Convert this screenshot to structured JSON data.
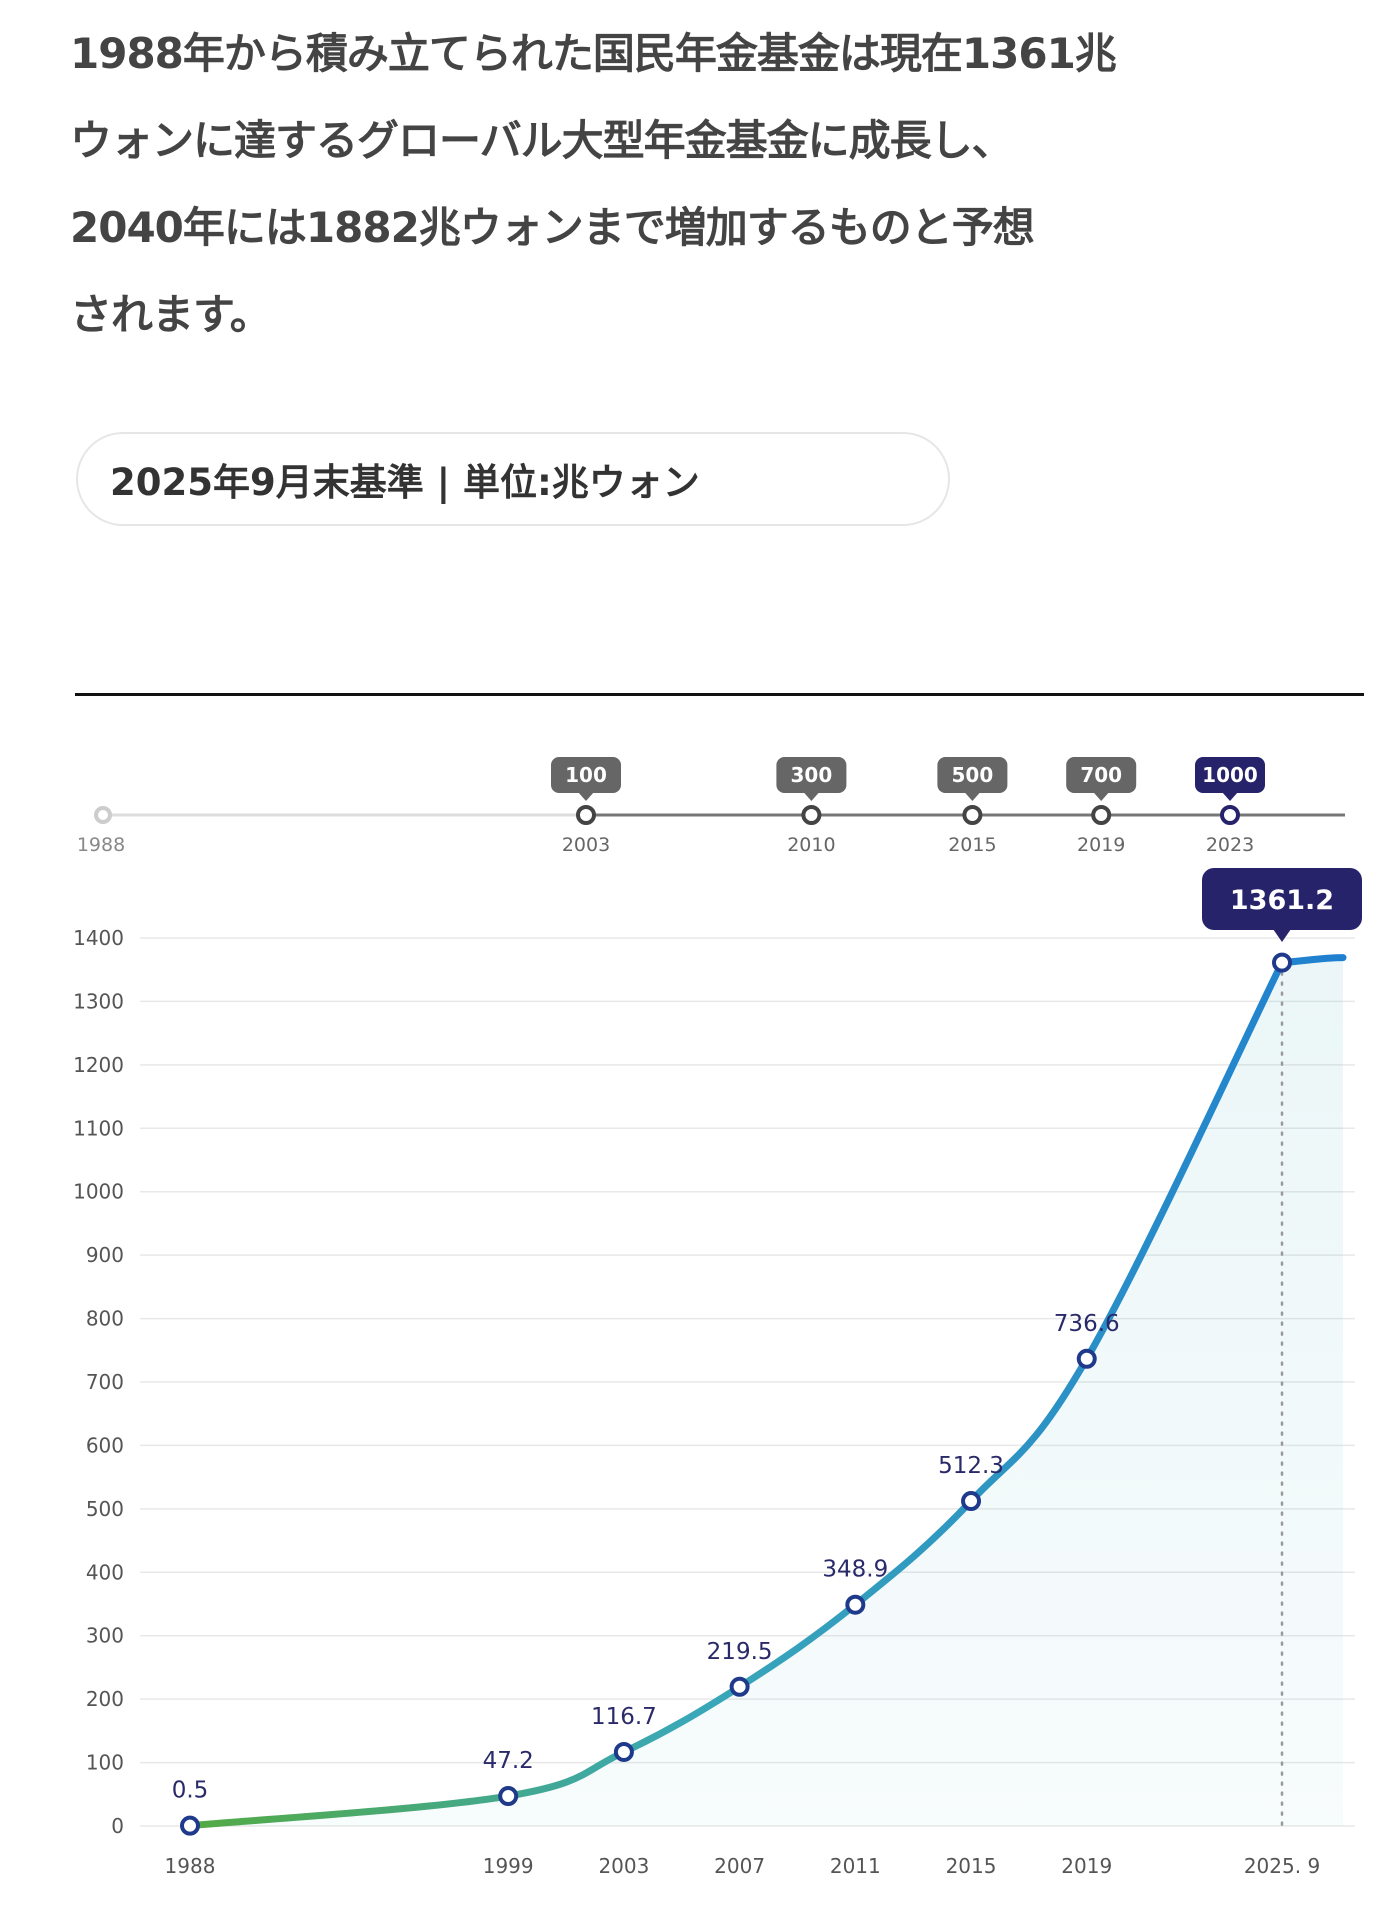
{
  "intro_lines": [
    "1988年から積み立てられた国民年金基金は現在1361兆",
    "ウォンに達するグローバル大型年金基金に成長し、",
    "2040年には1882兆ウォンまで増加するものと予想",
    "されます。"
  ],
  "basis_badge": "2025年9月末基準 | 単位:兆ウォン",
  "colors": {
    "line_start": "#55aa3a",
    "line_mid": "#3aa8b8",
    "line_end": "#1f7fd0",
    "point_stroke": "#1f3a8a",
    "label_text": "#2a2a6a",
    "callout_bg": "#27236b",
    "milestone_tag_bg": "#666666",
    "milestone_highlight_bg": "#27236b",
    "grid": "#e8e8e8",
    "axis_text": "#555555"
  },
  "chart_data": [
    {
      "type": "timeline",
      "start": "1988",
      "milestones": [
        {
          "year": "2003",
          "tag": "100"
        },
        {
          "year": "2010",
          "tag": "300"
        },
        {
          "year": "2015",
          "tag": "500"
        },
        {
          "year": "2019",
          "tag": "700"
        },
        {
          "year": "2023",
          "tag": "1000",
          "highlight": true
        }
      ]
    },
    {
      "type": "line",
      "categories": [
        "1988",
        "1999",
        "2003",
        "2007",
        "2011",
        "2015",
        "2019",
        "2025. 9"
      ],
      "x": [
        1988,
        1999,
        2003,
        2007,
        2011,
        2015,
        2019,
        2025.75
      ],
      "values": [
        0.5,
        47.2,
        116.7,
        219.5,
        348.9,
        512.3,
        736.6,
        1361.2
      ],
      "data_labels": [
        "0.5",
        "47.2",
        "116.7",
        "219.5",
        "348.9",
        "512.3",
        "736.6",
        "1361.2"
      ],
      "yticks": [
        0,
        100,
        200,
        300,
        400,
        500,
        600,
        700,
        800,
        900,
        1000,
        1100,
        1200,
        1300,
        1400
      ],
      "ylim": [
        0,
        1400
      ],
      "grid": true,
      "callout": {
        "label": "1361.2",
        "index": 7
      }
    }
  ]
}
